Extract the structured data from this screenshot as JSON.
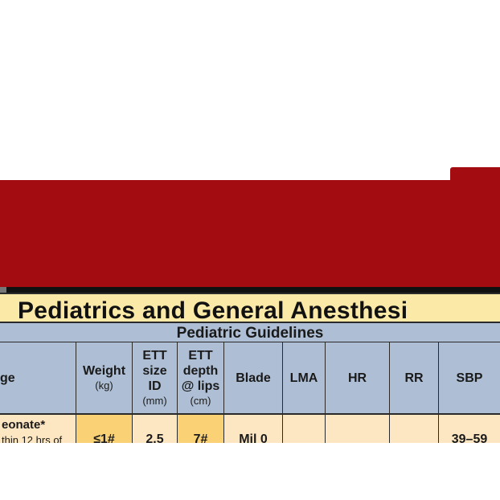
{
  "title": "Pediatrics and General Anesthesi",
  "subtitle": "Pediatric Guidelines",
  "columns": [
    {
      "label": "ge",
      "unit": ""
    },
    {
      "label": "Weight",
      "unit": "(kg)"
    },
    {
      "label": "ETT size ID",
      "unit": "(mm)"
    },
    {
      "label": "ETT depth @ lips",
      "unit": "(cm)"
    },
    {
      "label": "Blade",
      "unit": ""
    },
    {
      "label": "LMA",
      "unit": ""
    },
    {
      "label": "HR",
      "unit": ""
    },
    {
      "label": "RR",
      "unit": ""
    },
    {
      "label": "SBP",
      "unit": ""
    }
  ],
  "row": {
    "age_main": "eonate*",
    "age_sub": "thin 12 hrs of",
    "weight": "≤1#",
    "ett_size": "2.5",
    "ett_depth": "7#",
    "blade": "Mil 0",
    "lma": "",
    "hr": "",
    "rr": "",
    "sbp": "39–59"
  },
  "colors": {
    "band_red": "#a30d12",
    "title_bg": "#fbe9a7",
    "header_bg": "#aebfd5",
    "row_bg": "#fde6c2",
    "highlight": "#fbd176"
  }
}
